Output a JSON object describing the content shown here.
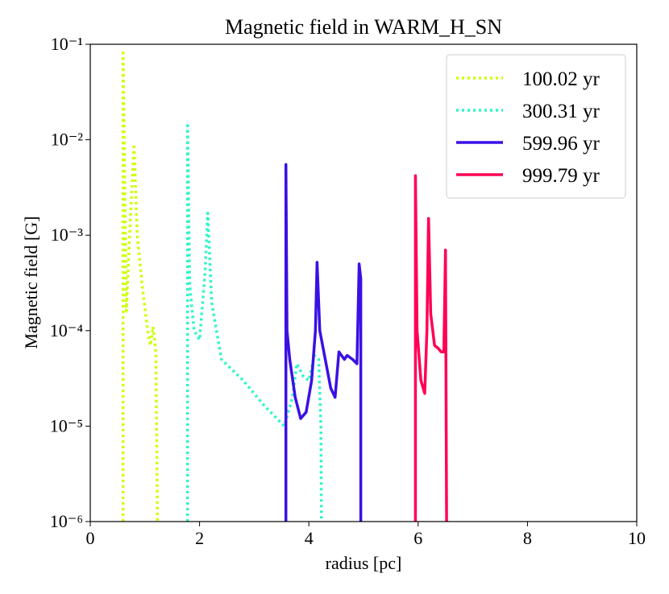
{
  "chart_data": {
    "type": "line",
    "title": "Magnetic field in WARM_H_SN",
    "x_label": "radius [pc]",
    "y_label": "Magnetic field [G]",
    "y_scale": "log",
    "legend": "upper right",
    "xlim": [
      0,
      10
    ],
    "xticks": [
      0,
      2,
      4,
      6,
      8,
      10
    ],
    "ylim": [
      1e-06,
      0.1
    ],
    "yticks": [
      {
        "value": 1e-06,
        "label": "10⁻⁶"
      },
      {
        "value": 1e-05,
        "label": "10⁻⁵"
      },
      {
        "value": 0.0001,
        "label": "10⁻⁴"
      },
      {
        "value": 0.001,
        "label": "10⁻³"
      },
      {
        "value": 0.01,
        "label": "10⁻²"
      },
      {
        "value": 0.1,
        "label": "10⁻¹"
      }
    ],
    "series": [
      {
        "name": "100.02 yr",
        "color": "#ccff00",
        "style": "dotted",
        "x": [
          0.6,
          0.6,
          0.66,
          0.72,
          0.8,
          0.86,
          0.95,
          1.05,
          1.1,
          1.15,
          1.2,
          1.23
        ],
        "values": [
          1e-06,
          0.087,
          0.00016,
          0.001,
          0.009,
          0.001,
          0.0003,
          0.0001,
          7e-05,
          0.00011,
          6e-05,
          1e-06
        ]
      },
      {
        "name": "300.31 yr",
        "color": "#2ef5c8",
        "style": "dotted",
        "x": [
          1.78,
          1.78,
          1.82,
          1.9,
          2.0,
          2.1,
          2.15,
          2.22,
          2.4,
          2.8,
          3.2,
          3.55,
          3.7,
          3.78,
          3.9,
          4.0,
          4.1,
          4.18,
          4.22,
          4.23
        ],
        "values": [
          1e-06,
          0.015,
          0.0003,
          0.0001,
          8e-05,
          0.0004,
          0.0017,
          0.0002,
          5e-05,
          3e-05,
          1.6e-05,
          1e-05,
          2e-05,
          4.5e-05,
          3.3e-05,
          3e-05,
          5.5e-05,
          5e-05,
          1e-05,
          1e-06
        ]
      },
      {
        "name": "599.96 yr",
        "color": "#3a10e5",
        "style": "solid",
        "x": [
          3.58,
          3.58,
          3.6,
          3.65,
          3.75,
          3.85,
          3.95,
          4.05,
          4.12,
          4.15,
          4.2,
          4.3,
          4.4,
          4.48,
          4.55,
          4.65,
          4.7,
          4.8,
          4.88,
          4.92,
          4.95,
          4.95
        ],
        "values": [
          1e-06,
          0.0055,
          0.0001,
          5e-05,
          2e-05,
          1.2e-05,
          1.4e-05,
          3e-05,
          0.0001,
          0.00052,
          0.0001,
          5e-05,
          2.5e-05,
          2e-05,
          6e-05,
          5e-05,
          5.5e-05,
          5e-05,
          4.5e-05,
          0.0005,
          0.00035,
          1e-06
        ]
      },
      {
        "name": "999.79 yr",
        "color": "#ff0055",
        "style": "solid",
        "x": [
          5.95,
          5.95,
          5.98,
          6.05,
          6.12,
          6.16,
          6.19,
          6.23,
          6.3,
          6.37,
          6.42,
          6.47,
          6.5,
          6.52
        ],
        "values": [
          1e-06,
          0.0042,
          0.0001,
          3e-05,
          2.2e-05,
          0.0001,
          0.0015,
          0.00015,
          7e-05,
          6.5e-05,
          6e-05,
          6e-05,
          0.0007,
          1e-06
        ]
      }
    ]
  }
}
